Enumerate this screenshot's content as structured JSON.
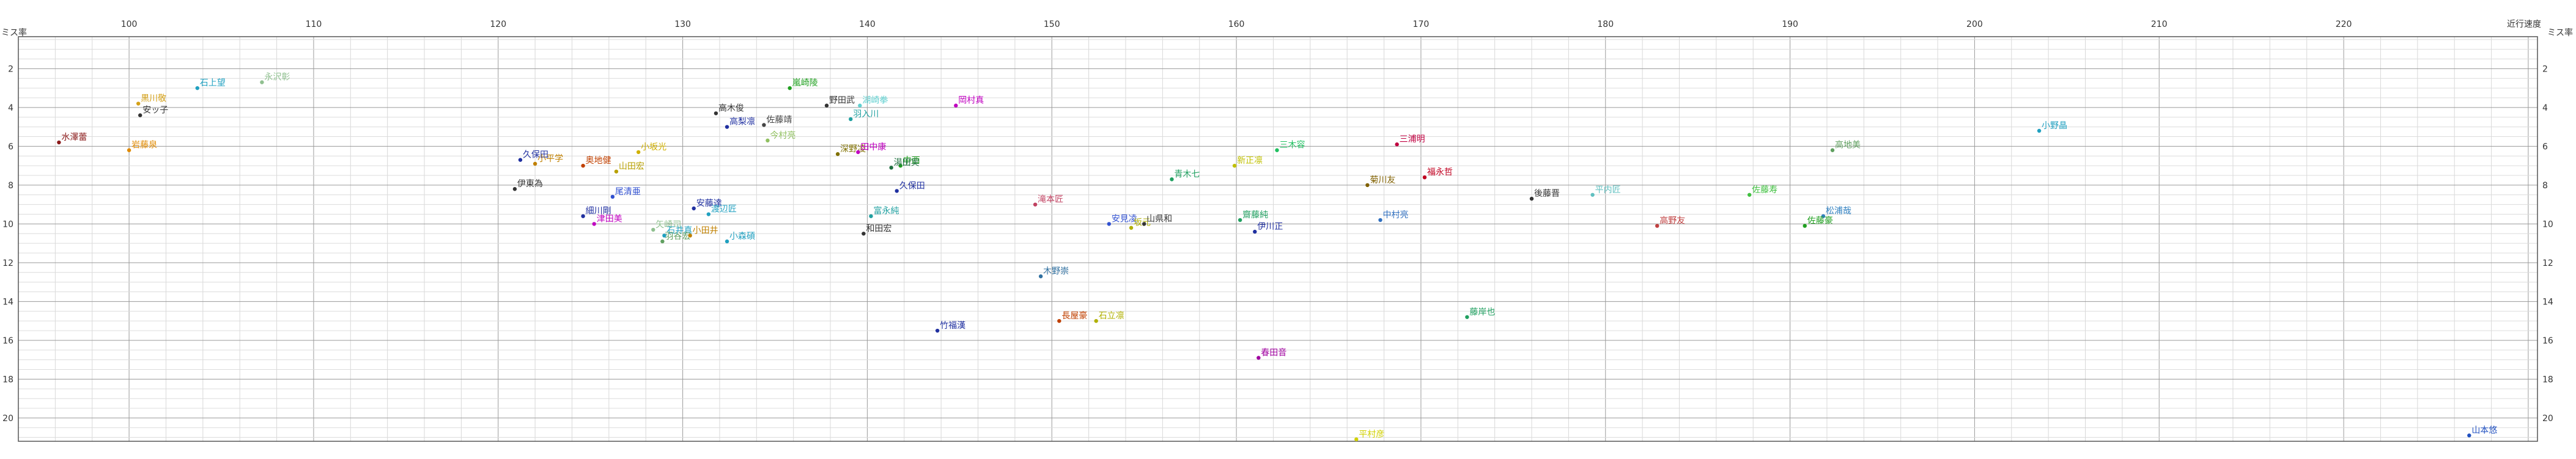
{
  "chart_data": {
    "type": "scatter",
    "x_axis_label": "近行速度",
    "y_axis_label": "ミス率",
    "xlim": [
      94,
      230.5
    ],
    "ylim": [
      21.2,
      0.35
    ],
    "x_ticks": [
      100,
      110,
      120,
      130,
      140,
      150,
      160,
      170,
      180,
      190,
      200,
      210,
      220
    ],
    "y_ticks": [
      2,
      4,
      6,
      8,
      10,
      12,
      14,
      16,
      18,
      20
    ],
    "grid": true,
    "points": [
      {
        "label": "水澤蕾",
        "x": 96.2,
        "y": 5.8,
        "color": "#8b1a1a"
      },
      {
        "label": "黒川敬",
        "x": 100.5,
        "y": 3.8,
        "color": "#d4a017"
      },
      {
        "label": "安ッ子",
        "x": 100.6,
        "y": 4.4,
        "color": "#333333"
      },
      {
        "label": "岩藤泉",
        "x": 100.0,
        "y": 6.2,
        "color": "#e08a00"
      },
      {
        "label": "石上望",
        "x": 103.7,
        "y": 3.0,
        "color": "#20a0c0"
      },
      {
        "label": "永沢彰",
        "x": 107.2,
        "y": 2.7,
        "color": "#90c090"
      },
      {
        "label": "久保田",
        "x": 121.2,
        "y": 6.7,
        "color": "#2030a0"
      },
      {
        "label": "小平学",
        "x": 122.0,
        "y": 6.9,
        "color": "#c08000"
      },
      {
        "label": "奥地健",
        "x": 124.6,
        "y": 7.0,
        "color": "#c04000"
      },
      {
        "label": "山田宏",
        "x": 126.4,
        "y": 7.3,
        "color": "#b8a000"
      },
      {
        "label": "小坂光",
        "x": 127.6,
        "y": 6.3,
        "color": "#d0b000"
      },
      {
        "label": "伊東為",
        "x": 120.9,
        "y": 8.2,
        "color": "#333333"
      },
      {
        "label": "尾清亜",
        "x": 126.2,
        "y": 8.6,
        "color": "#3050d0"
      },
      {
        "label": "細川剛",
        "x": 124.6,
        "y": 9.6,
        "color": "#2030a0"
      },
      {
        "label": "津田美",
        "x": 125.2,
        "y": 10.0,
        "color": "#c000c0"
      },
      {
        "label": "安藤達",
        "x": 130.6,
        "y": 9.2,
        "color": "#2030a0"
      },
      {
        "label": "渡辺匠",
        "x": 131.4,
        "y": 9.5,
        "color": "#20a0c0"
      },
      {
        "label": "矢崎司",
        "x": 128.4,
        "y": 10.3,
        "color": "#90c090"
      },
      {
        "label": "石井真",
        "x": 129.0,
        "y": 10.6,
        "color": "#20a0c0"
      },
      {
        "label": "羽谷宏",
        "x": 128.9,
        "y": 10.9,
        "color": "#60a060"
      },
      {
        "label": "小田井",
        "x": 130.4,
        "y": 10.6,
        "color": "#c08000"
      },
      {
        "label": "小森碩",
        "x": 132.4,
        "y": 10.9,
        "color": "#20a0c0"
      },
      {
        "label": "高木俊",
        "x": 131.8,
        "y": 4.3,
        "color": "#333333"
      },
      {
        "label": "高梨凛",
        "x": 132.4,
        "y": 5.0,
        "color": "#2030a0"
      },
      {
        "label": "佐藤靖",
        "x": 134.4,
        "y": 4.9,
        "color": "#444444"
      },
      {
        "label": "今村亮",
        "x": 134.6,
        "y": 5.7,
        "color": "#90c060"
      },
      {
        "label": "嵐崎陵",
        "x": 135.8,
        "y": 3.0,
        "color": "#20a020"
      },
      {
        "label": "野田武",
        "x": 137.8,
        "y": 3.9,
        "color": "#333333"
      },
      {
        "label": "湖崎拳",
        "x": 139.6,
        "y": 3.9,
        "color": "#60d0d0"
      },
      {
        "label": "羽入川",
        "x": 139.1,
        "y": 4.6,
        "color": "#20a0a0"
      },
      {
        "label": "深野凌",
        "x": 138.4,
        "y": 6.4,
        "color": "#807000"
      },
      {
        "label": "田中康",
        "x": 139.5,
        "y": 6.3,
        "color": "#c000c0"
      },
      {
        "label": "中西",
        "x": 141.8,
        "y": 7.0,
        "color": "#20a020"
      },
      {
        "label": "湯田実",
        "x": 141.3,
        "y": 7.1,
        "color": "#207040"
      },
      {
        "label": "久保田",
        "x": 141.6,
        "y": 8.3,
        "color": "#2030a0"
      },
      {
        "label": "富永純",
        "x": 140.2,
        "y": 9.6,
        "color": "#20a0a0"
      },
      {
        "label": "和田宏",
        "x": 139.8,
        "y": 10.5,
        "color": "#333333"
      },
      {
        "label": "岡村真",
        "x": 144.8,
        "y": 3.9,
        "color": "#c000c0"
      },
      {
        "label": "滝本匠",
        "x": 149.1,
        "y": 9.0,
        "color": "#c04060"
      },
      {
        "label": "木野崇",
        "x": 149.4,
        "y": 12.7,
        "color": "#3070a0"
      },
      {
        "label": "竹福漢",
        "x": 143.8,
        "y": 15.5,
        "color": "#2030a0"
      },
      {
        "label": "長屋豪",
        "x": 150.4,
        "y": 15.0,
        "color": "#c04000"
      },
      {
        "label": "石立凛",
        "x": 152.4,
        "y": 15.0,
        "color": "#b0b000"
      },
      {
        "label": "安見凌",
        "x": 153.1,
        "y": 10.0,
        "color": "#3050d0"
      },
      {
        "label": "坂元",
        "x": 154.3,
        "y": 10.2,
        "color": "#b0b000"
      },
      {
        "label": "山県和",
        "x": 155.0,
        "y": 10.0,
        "color": "#333333"
      },
      {
        "label": "青木七",
        "x": 156.5,
        "y": 7.7,
        "color": "#20a060"
      },
      {
        "label": "新正凛",
        "x": 159.9,
        "y": 7.0,
        "color": "#c0c000"
      },
      {
        "label": "齋藤純",
        "x": 160.2,
        "y": 9.8,
        "color": "#20a060"
      },
      {
        "label": "伊川正",
        "x": 161.0,
        "y": 10.4,
        "color": "#2030a0"
      },
      {
        "label": "三木容",
        "x": 162.2,
        "y": 6.2,
        "color": "#20c060"
      },
      {
        "label": "春田音",
        "x": 161.2,
        "y": 16.9,
        "color": "#a000a0"
      },
      {
        "label": "三浦明",
        "x": 168.7,
        "y": 5.9,
        "color": "#c00040"
      },
      {
        "label": "菊川友",
        "x": 167.1,
        "y": 8.0,
        "color": "#806000"
      },
      {
        "label": "福永哲",
        "x": 170.2,
        "y": 7.6,
        "color": "#c00020"
      },
      {
        "label": "中村亮",
        "x": 167.8,
        "y": 9.8,
        "color": "#3070c0"
      },
      {
        "label": "平村彦",
        "x": 166.5,
        "y": 21.1,
        "color": "#d0d000"
      },
      {
        "label": "藤岸也",
        "x": 172.5,
        "y": 14.8,
        "color": "#20a060"
      },
      {
        "label": "後藤晋",
        "x": 176.0,
        "y": 8.7,
        "color": "#333333"
      },
      {
        "label": "平内匠",
        "x": 179.3,
        "y": 8.5,
        "color": "#60c0c0"
      },
      {
        "label": "高野友",
        "x": 182.8,
        "y": 10.1,
        "color": "#c04040"
      },
      {
        "label": "佐藤寿",
        "x": 187.8,
        "y": 8.5,
        "color": "#40c040"
      },
      {
        "label": "松浦哉",
        "x": 191.8,
        "y": 9.6,
        "color": "#3080c0"
      },
      {
        "label": "佐藤豪",
        "x": 190.8,
        "y": 10.1,
        "color": "#20a020"
      },
      {
        "label": "高地美",
        "x": 192.3,
        "y": 6.2,
        "color": "#60a060"
      },
      {
        "label": "小野晶",
        "x": 203.5,
        "y": 5.2,
        "color": "#20a0c0"
      },
      {
        "label": "山本悠",
        "x": 226.8,
        "y": 20.9,
        "color": "#2050c0"
      }
    ]
  }
}
